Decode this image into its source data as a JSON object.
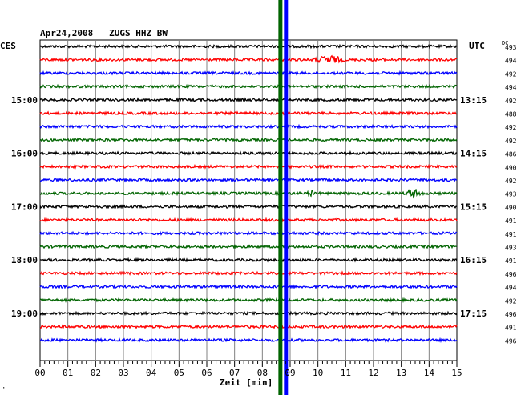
{
  "chart_data": {
    "type": "line",
    "title": "Apr24,2008   ZUGS HHZ BW",
    "xlabel": "Zeit [min]",
    "left_axis_label": "CES",
    "right_axis_label": "UTC",
    "dc_label": "DC",
    "x_ticks": [
      "00",
      "01",
      "02",
      "03",
      "04",
      "05",
      "06",
      "07",
      "08",
      "09",
      "10",
      "11",
      "12",
      "13",
      "14",
      "15"
    ],
    "xlim": [
      0,
      15
    ],
    "left_hour_labels": [
      {
        "row": 4,
        "label": "15:00"
      },
      {
        "row": 8,
        "label": "16:00"
      },
      {
        "row": 12,
        "label": "17:00"
      },
      {
        "row": 16,
        "label": "18:00"
      },
      {
        "row": 20,
        "label": "19:00"
      }
    ],
    "right_hour_labels": [
      {
        "row": 4,
        "label": "13:15"
      },
      {
        "row": 8,
        "label": "14:15"
      },
      {
        "row": 12,
        "label": "15:15"
      },
      {
        "row": 16,
        "label": "16:15"
      },
      {
        "row": 20,
        "label": "17:15"
      }
    ],
    "dc_values": [
      "493",
      "494",
      "492",
      "494",
      "492",
      "488",
      "492",
      "492",
      "486",
      "490",
      "492",
      "493",
      "490",
      "491",
      "491",
      "493",
      "491",
      "496",
      "494",
      "492",
      "496",
      "491",
      "496"
    ],
    "trace_colors": [
      "#000000",
      "#ff0000",
      "#0000ff",
      "#006400"
    ],
    "vertical_markers": [
      {
        "minute": 8.65,
        "color": "#006400"
      },
      {
        "minute": 8.85,
        "color": "#0000ff"
      }
    ],
    "events": [
      {
        "row": 1,
        "start_min": 9.8,
        "end_min": 11.0,
        "amplitude": 5
      },
      {
        "row": 11,
        "start_min": 9.6,
        "end_min": 9.9,
        "amplitude": 3
      },
      {
        "row": 11,
        "start_min": 13.1,
        "end_min": 13.8,
        "amplitude": 5
      }
    ],
    "corner_mark": "·"
  }
}
